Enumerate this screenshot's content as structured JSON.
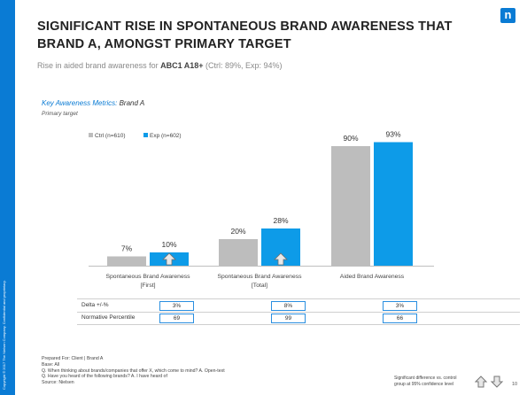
{
  "sidebar": {
    "text": "Copyright © 2017 The Nielsen Company. Confidential and proprietary.",
    "color": "#0a7bd4"
  },
  "logo": {
    "glyph": "n",
    "color": "#0a7bd4"
  },
  "header": {
    "title": "SIGNIFICANT RISE IN SPONTANEOUS BRAND AWARENESS THAT BRAND A, AMONGST PRIMARY TARGET",
    "subtitle_prefix": "Rise in aided brand awareness  for ",
    "subtitle_highlight": "ABC1 A18+",
    "subtitle_suffix": " (Ctrl: 89%, Exp: 94%)"
  },
  "chart_header": {
    "metrics_label": "Key Awareness Metrics:",
    "brand": " Brand A",
    "primary_target": "Primary target"
  },
  "chart_data": {
    "type": "bar",
    "categories": [
      "Spontaneous Brand Awareness [First]",
      "Spontaneous Brand Awareness [Total]",
      "Aided Brand Awareness"
    ],
    "category_lines": [
      [
        "Spontaneous Brand Awareness",
        "[First]"
      ],
      [
        "Spontaneous Brand Awareness",
        "[Total]"
      ],
      [
        "Aided Brand Awareness"
      ]
    ],
    "series": [
      {
        "name": "Ctrl (n=610)",
        "values": [
          7,
          20,
          90
        ],
        "color": "#bdbdbd"
      },
      {
        "name": "Exp (n=602)",
        "values": [
          10,
          28,
          93
        ],
        "color": "#0d9be8"
      }
    ],
    "data_labels": [
      [
        "7%",
        "20%",
        "90%"
      ],
      [
        "10%",
        "28%",
        "93%"
      ]
    ],
    "significance_up": [
      true,
      true,
      false
    ],
    "ylim": [
      0,
      100
    ],
    "legend": "top-left",
    "grid": false
  },
  "table": {
    "rows": [
      {
        "label": "Delta +/-%",
        "values": [
          "3%",
          "8%",
          "3%"
        ]
      },
      {
        "label": "Normative Percentile",
        "values": [
          "69",
          "99",
          "66"
        ]
      }
    ]
  },
  "notes": [
    "Prepared For: Client | Brand A",
    "Base: All",
    "Q. When thinking about brands/companies that offer X, which come to mind? A. Open-text",
    "Q. Have you heard of the following brands? A. I have heard of",
    "Source: Nielsen"
  ],
  "footer": {
    "legend_line1": "Significant difference vs. control",
    "legend_line2": "group at 95% confidence level",
    "page_number": "10"
  }
}
